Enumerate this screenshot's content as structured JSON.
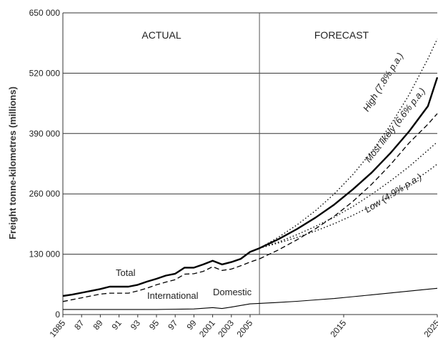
{
  "chart_data": {
    "type": "line",
    "title": "",
    "ylabel": "Freight tonne-kilometres (millions)",
    "xlabel": "",
    "ylim": [
      0,
      650000
    ],
    "xlim": [
      1985,
      2025
    ],
    "y_ticks": [
      "650 000",
      "520 000",
      "390 000",
      "260 000",
      "130 000",
      "0"
    ],
    "y_tick_values": [
      650000,
      520000,
      390000,
      260000,
      130000,
      0
    ],
    "x_ticks": [
      "1985",
      "87",
      "89",
      "91",
      "93",
      "95",
      "97",
      "99",
      "2001",
      "2003",
      "2005",
      "2015",
      "2025"
    ],
    "x_tick_values": [
      1985,
      1987,
      1989,
      1991,
      1993,
      1995,
      1997,
      1999,
      2001,
      2003,
      2005,
      2015,
      2025
    ],
    "divider_year": 2006,
    "sections": {
      "actual": "ACTUAL",
      "forecast": "FORECAST"
    },
    "series": [
      {
        "name": "Total",
        "style": "solid-thick",
        "x": [
          1985,
          1986,
          1987,
          1988,
          1989,
          1990,
          1991,
          1992,
          1993,
          1994,
          1995,
          1996,
          1997,
          1998,
          1999,
          2000,
          2001,
          2002,
          2003,
          2004,
          2005,
          2006
        ],
        "y": [
          40000,
          43000,
          47000,
          51000,
          55000,
          60000,
          60000,
          60000,
          64000,
          71000,
          77000,
          84000,
          88000,
          101000,
          101000,
          108000,
          116000,
          108000,
          113000,
          120000,
          135000,
          143000
        ]
      },
      {
        "name": "International",
        "style": "dashed",
        "x": [
          1985,
          1986,
          1987,
          1988,
          1989,
          1990,
          1991,
          1992,
          1993,
          1994,
          1995,
          1996,
          1997,
          1998,
          1999,
          2000,
          2001,
          2002,
          2003,
          2004,
          2005,
          2006
        ],
        "y": [
          28000,
          32000,
          36000,
          40000,
          44000,
          46000,
          46000,
          46000,
          51000,
          57000,
          64000,
          70000,
          75000,
          87000,
          88000,
          93000,
          103000,
          95000,
          98000,
          105000,
          113000,
          120000
        ]
      },
      {
        "name": "Domestic",
        "style": "solid-thin",
        "x": [
          1985,
          1987,
          1989,
          1991,
          1993,
          1995,
          1997,
          1999,
          2001,
          2002,
          2003,
          2005,
          2006,
          2008,
          2010,
          2012,
          2014,
          2016,
          2018,
          2020,
          2022,
          2024,
          2025
        ],
        "y": [
          11000,
          11000,
          11000,
          11000,
          11000,
          11000,
          11500,
          12000,
          15000,
          13000,
          16000,
          23000,
          24000,
          26000,
          28500,
          31500,
          34500,
          38500,
          42500,
          46500,
          50500,
          54500,
          56500
        ]
      },
      {
        "name": "High (7.8% p.a.)",
        "style": "dotted",
        "x": [
          2006,
          2008,
          2010,
          2012,
          2014,
          2016,
          2018,
          2020,
          2022,
          2024,
          2025
        ],
        "y": [
          143000,
          166000,
          193000,
          224000,
          260000,
          302000,
          351000,
          408000,
          474000,
          551000,
          594000
        ]
      },
      {
        "name": "Most likely (6.6% p.a.)",
        "style": "solid-thick",
        "x": [
          2006,
          2008,
          2010,
          2012,
          2014,
          2016,
          2018,
          2020,
          2022,
          2024,
          2025
        ],
        "y": [
          143000,
          162000,
          184000,
          209000,
          237000,
          270000,
          306000,
          348000,
          395000,
          449000,
          511000
        ]
      },
      {
        "name": "Most likely (6.6% p.a.) (dashed)",
        "style": "dashed",
        "x": [
          2006,
          2008,
          2010,
          2012,
          2014,
          2016,
          2018,
          2020,
          2022,
          2024,
          2025
        ],
        "y": [
          120000,
          139000,
          161000,
          185000,
          212000,
          244000,
          281000,
          323000,
          370000,
          410000,
          433000
        ]
      },
      {
        "name": "Low (4.9% p.a.)",
        "style": "dotted",
        "x": [
          2006,
          2008,
          2010,
          2012,
          2014,
          2016,
          2018,
          2020,
          2022,
          2024,
          2025
        ],
        "y": [
          143000,
          156000,
          172000,
          190000,
          210000,
          233000,
          259000,
          288000,
          319000,
          354000,
          372000
        ]
      },
      {
        "name": "Low (4.9% p.a.) (dotted lower)",
        "style": "dotted",
        "x": [
          2006,
          2008,
          2010,
          2012,
          2014,
          2016,
          2018,
          2020,
          2022,
          2024,
          2025
        ],
        "y": [
          143000,
          154000,
          166000,
          180000,
          196000,
          214000,
          234000,
          256000,
          281000,
          309000,
          324000
        ]
      }
    ],
    "labels": {
      "total": "Total",
      "international": "International",
      "domestic": "Domestic",
      "high": "High (7.8% p.a.)",
      "most_likely": "Most likely (6.6% p.a.)",
      "low": "Low (4.9% p.a.)"
    },
    "grid": true
  }
}
